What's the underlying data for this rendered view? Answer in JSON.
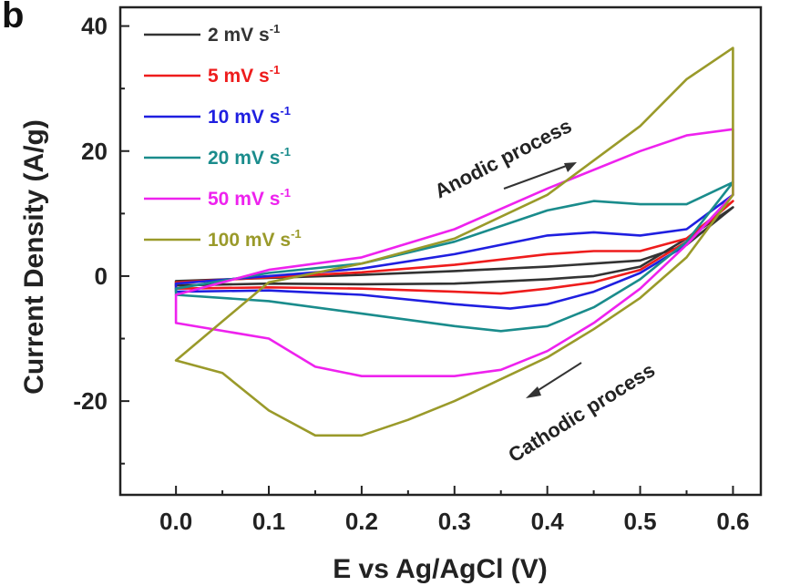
{
  "chart_data": {
    "type": "line",
    "panel_label": "b",
    "xlabel": "E vs Ag/AgCl (V)",
    "ylabel": "Current Density (A/g)",
    "xlim": [
      -0.06,
      0.63
    ],
    "ylim": [
      -35,
      43
    ],
    "xticks": [
      0.0,
      0.1,
      0.2,
      0.3,
      0.4,
      0.5,
      0.6
    ],
    "xtick_labels": [
      "0.0",
      "0.1",
      "0.2",
      "0.3",
      "0.4",
      "0.5",
      "0.6"
    ],
    "yticks": [
      -20,
      0,
      20,
      40
    ],
    "ytick_labels": [
      "-20",
      "0",
      "20",
      "40"
    ],
    "grid": false,
    "legend_position": "top-left",
    "unit_sup": "-1",
    "series": [
      {
        "name": "2 mV s",
        "color": "#333333",
        "x": [
          0.0,
          0.1,
          0.2,
          0.3,
          0.4,
          0.45,
          0.5,
          0.55,
          0.6,
          0.55,
          0.5,
          0.45,
          0.4,
          0.3,
          0.2,
          0.1,
          0.0,
          0.0
        ],
        "y": [
          -0.8,
          -0.3,
          0.2,
          0.8,
          1.5,
          2.0,
          2.5,
          5.0,
          11.0,
          6.0,
          1.5,
          0.0,
          -0.5,
          -1.2,
          -1.3,
          -1.2,
          -1.5,
          -0.8
        ]
      },
      {
        "name": "5 mV s",
        "color": "#ee1c1c",
        "x": [
          0.0,
          0.1,
          0.2,
          0.3,
          0.4,
          0.45,
          0.5,
          0.55,
          0.6,
          0.55,
          0.5,
          0.45,
          0.4,
          0.35,
          0.3,
          0.2,
          0.1,
          0.0,
          0.0
        ],
        "y": [
          -1.0,
          -0.2,
          0.6,
          1.8,
          3.5,
          4.0,
          4.0,
          6.0,
          12.0,
          5.5,
          1.0,
          -1.0,
          -2.0,
          -2.8,
          -2.5,
          -2.0,
          -1.8,
          -2.0,
          -1.0
        ]
      },
      {
        "name": "10 mV s",
        "color": "#1f1fe0",
        "x": [
          0.0,
          0.1,
          0.2,
          0.3,
          0.4,
          0.45,
          0.5,
          0.55,
          0.6,
          0.55,
          0.5,
          0.45,
          0.4,
          0.36,
          0.3,
          0.2,
          0.1,
          0.0,
          0.0
        ],
        "y": [
          -1.2,
          0.0,
          1.2,
          3.5,
          6.5,
          7.0,
          6.5,
          7.5,
          13.0,
          5.0,
          0.5,
          -2.5,
          -4.5,
          -5.2,
          -4.5,
          -3.0,
          -2.3,
          -2.5,
          -1.2
        ]
      },
      {
        "name": "20 mV s",
        "color": "#1a8c8c",
        "x": [
          0.0,
          0.1,
          0.2,
          0.3,
          0.4,
          0.45,
          0.5,
          0.55,
          0.6,
          0.55,
          0.5,
          0.45,
          0.4,
          0.35,
          0.3,
          0.2,
          0.1,
          0.0,
          0.0
        ],
        "y": [
          -2.0,
          0.5,
          2.0,
          5.5,
          10.5,
          12.0,
          11.5,
          11.5,
          15.0,
          5.5,
          -0.5,
          -5.0,
          -8.0,
          -8.8,
          -8.0,
          -6.0,
          -4.0,
          -3.0,
          -2.0
        ]
      },
      {
        "name": "50 mV s",
        "color": "#ee22ee",
        "x": [
          0.0,
          0.1,
          0.2,
          0.3,
          0.4,
          0.5,
          0.55,
          0.6,
          0.6,
          0.55,
          0.5,
          0.45,
          0.4,
          0.35,
          0.3,
          0.2,
          0.15,
          0.1,
          0.0,
          0.0
        ],
        "y": [
          -3.0,
          1.0,
          3.0,
          7.5,
          14.0,
          20.0,
          22.5,
          23.5,
          13.0,
          5.0,
          -2.0,
          -7.5,
          -12.0,
          -15.0,
          -16.0,
          -16.0,
          -14.5,
          -10.0,
          -7.5,
          -3.0
        ]
      },
      {
        "name": "100 mV s",
        "color": "#9a9a2a",
        "x": [
          0.0,
          0.1,
          0.2,
          0.3,
          0.4,
          0.5,
          0.55,
          0.6,
          0.6,
          0.55,
          0.5,
          0.45,
          0.4,
          0.35,
          0.3,
          0.25,
          0.2,
          0.15,
          0.1,
          0.05,
          0.0,
          0.0
        ],
        "y": [
          -13.5,
          -1.0,
          2.0,
          6.0,
          13.0,
          24.0,
          31.5,
          36.5,
          13.0,
          3.0,
          -3.5,
          -8.5,
          -13.0,
          -16.5,
          -20.0,
          -23.0,
          -25.5,
          -25.5,
          -21.5,
          -15.5,
          -13.5,
          -13.5
        ]
      }
    ],
    "annotations": [
      "Anodic process",
      "Cathodic process"
    ]
  }
}
